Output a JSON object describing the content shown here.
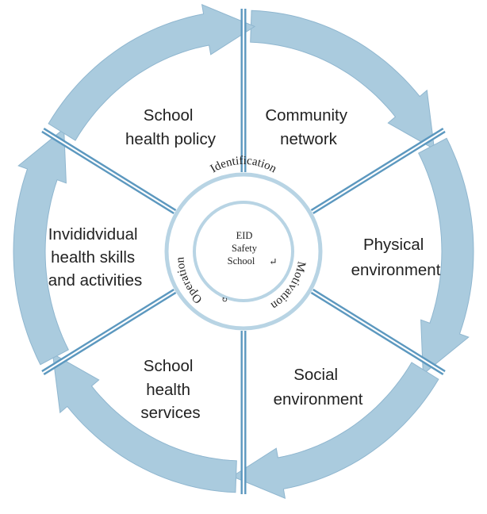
{
  "colors": {
    "ring": "#aacbde",
    "ring_edge": "#8fb6cf",
    "spoke": "#5c98bf",
    "spoke_gap": "#ffffff",
    "hub_stroke": "#b8d4e4",
    "text": "#222222"
  },
  "segments": [
    {
      "lines": [
        "School",
        "health policy"
      ]
    },
    {
      "lines": [
        "Community",
        "network"
      ]
    },
    {
      "lines": [
        "Physical",
        "environment"
      ]
    },
    {
      "lines": [
        "Social",
        "environment"
      ]
    },
    {
      "lines": [
        "School",
        "health",
        "services"
      ]
    },
    {
      "lines": [
        "Invididvidual",
        "health skills",
        "and activities"
      ]
    }
  ],
  "hub": {
    "ring_labels": {
      "top": "Identification",
      "right": "Motivation",
      "left": "Operation"
    },
    "center_lines": [
      "EID",
      "Safety",
      "School"
    ],
    "center_mark": "↵",
    "small_mark": "↻"
  }
}
